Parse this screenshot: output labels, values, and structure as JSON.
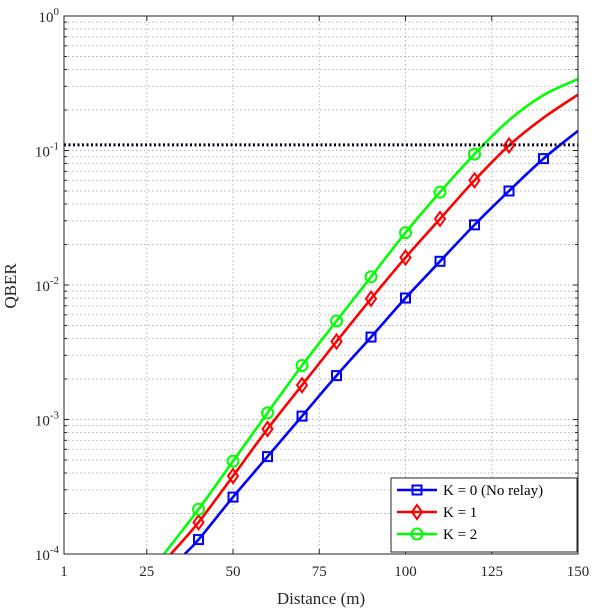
{
  "chart_data": {
    "type": "line",
    "xlabel": "Distance (m)",
    "ylabel": "QBER",
    "xlim": [
      1,
      150
    ],
    "ylim": [
      0.0001,
      1
    ],
    "yscale": "log",
    "grid": true,
    "minor_grid": true,
    "x_ticks": [
      1,
      25,
      50,
      75,
      100,
      125,
      150
    ],
    "x_tick_labels": [
      "1",
      "25",
      "50",
      "75",
      "100",
      "125",
      "150"
    ],
    "y_ticks": [
      {
        "value": 0.0001,
        "base": "10",
        "exp": "-4"
      },
      {
        "value": 0.001,
        "base": "10",
        "exp": "-3"
      },
      {
        "value": 0.01,
        "base": "10",
        "exp": "-2"
      },
      {
        "value": 0.1,
        "base": "10",
        "exp": "-1"
      },
      {
        "value": 1,
        "base": "10",
        "exp": "0"
      }
    ],
    "threshold": {
      "y": 0.11,
      "color": "#000022",
      "style": "dotted"
    },
    "legend_position": "bottom-right",
    "series": [
      {
        "name": "K = 0 (No relay)",
        "color": "#0000ff",
        "marker": "square",
        "x": [
          36,
          40,
          50,
          60,
          70,
          80,
          90,
          100,
          110,
          120,
          130,
          140,
          150
        ],
        "y": [
          0.0001,
          0.000128,
          0.000265,
          0.00053,
          0.00106,
          0.00212,
          0.0041,
          0.008,
          0.015,
          0.028,
          0.05,
          0.087,
          0.14
        ],
        "marker_x": [
          40,
          50,
          60,
          70,
          80,
          90,
          100,
          110,
          120,
          130,
          140
        ],
        "marker_y": [
          0.000128,
          0.000265,
          0.00053,
          0.00106,
          0.00212,
          0.0041,
          0.008,
          0.015,
          0.028,
          0.05,
          0.087
        ]
      },
      {
        "name": "K = 1",
        "color": "#ff0000",
        "marker": "diamond",
        "x": [
          32,
          40,
          50,
          60,
          70,
          80,
          90,
          100,
          110,
          120,
          130,
          140,
          150
        ],
        "y": [
          0.0001,
          0.000172,
          0.00038,
          0.00085,
          0.0018,
          0.0038,
          0.0079,
          0.016,
          0.031,
          0.06,
          0.109,
          0.175,
          0.26
        ],
        "marker_x": [
          40,
          50,
          60,
          70,
          80,
          90,
          100,
          110,
          120,
          130
        ],
        "marker_y": [
          0.000172,
          0.00038,
          0.00085,
          0.0018,
          0.0038,
          0.0079,
          0.016,
          0.031,
          0.06,
          0.109
        ]
      },
      {
        "name": "K = 2",
        "color": "#00ff00",
        "marker": "circle",
        "x": [
          30,
          40,
          50,
          60,
          70,
          80,
          90,
          100,
          110,
          120,
          130,
          140,
          150
        ],
        "y": [
          0.0001,
          0.000215,
          0.00049,
          0.00112,
          0.00252,
          0.0054,
          0.0115,
          0.0245,
          0.049,
          0.094,
          0.168,
          0.258,
          0.34
        ],
        "marker_x": [
          40,
          50,
          60,
          70,
          80,
          90,
          100,
          110,
          120
        ],
        "marker_y": [
          0.000215,
          0.00049,
          0.00112,
          0.00252,
          0.0054,
          0.0115,
          0.0245,
          0.049,
          0.094
        ]
      }
    ]
  }
}
